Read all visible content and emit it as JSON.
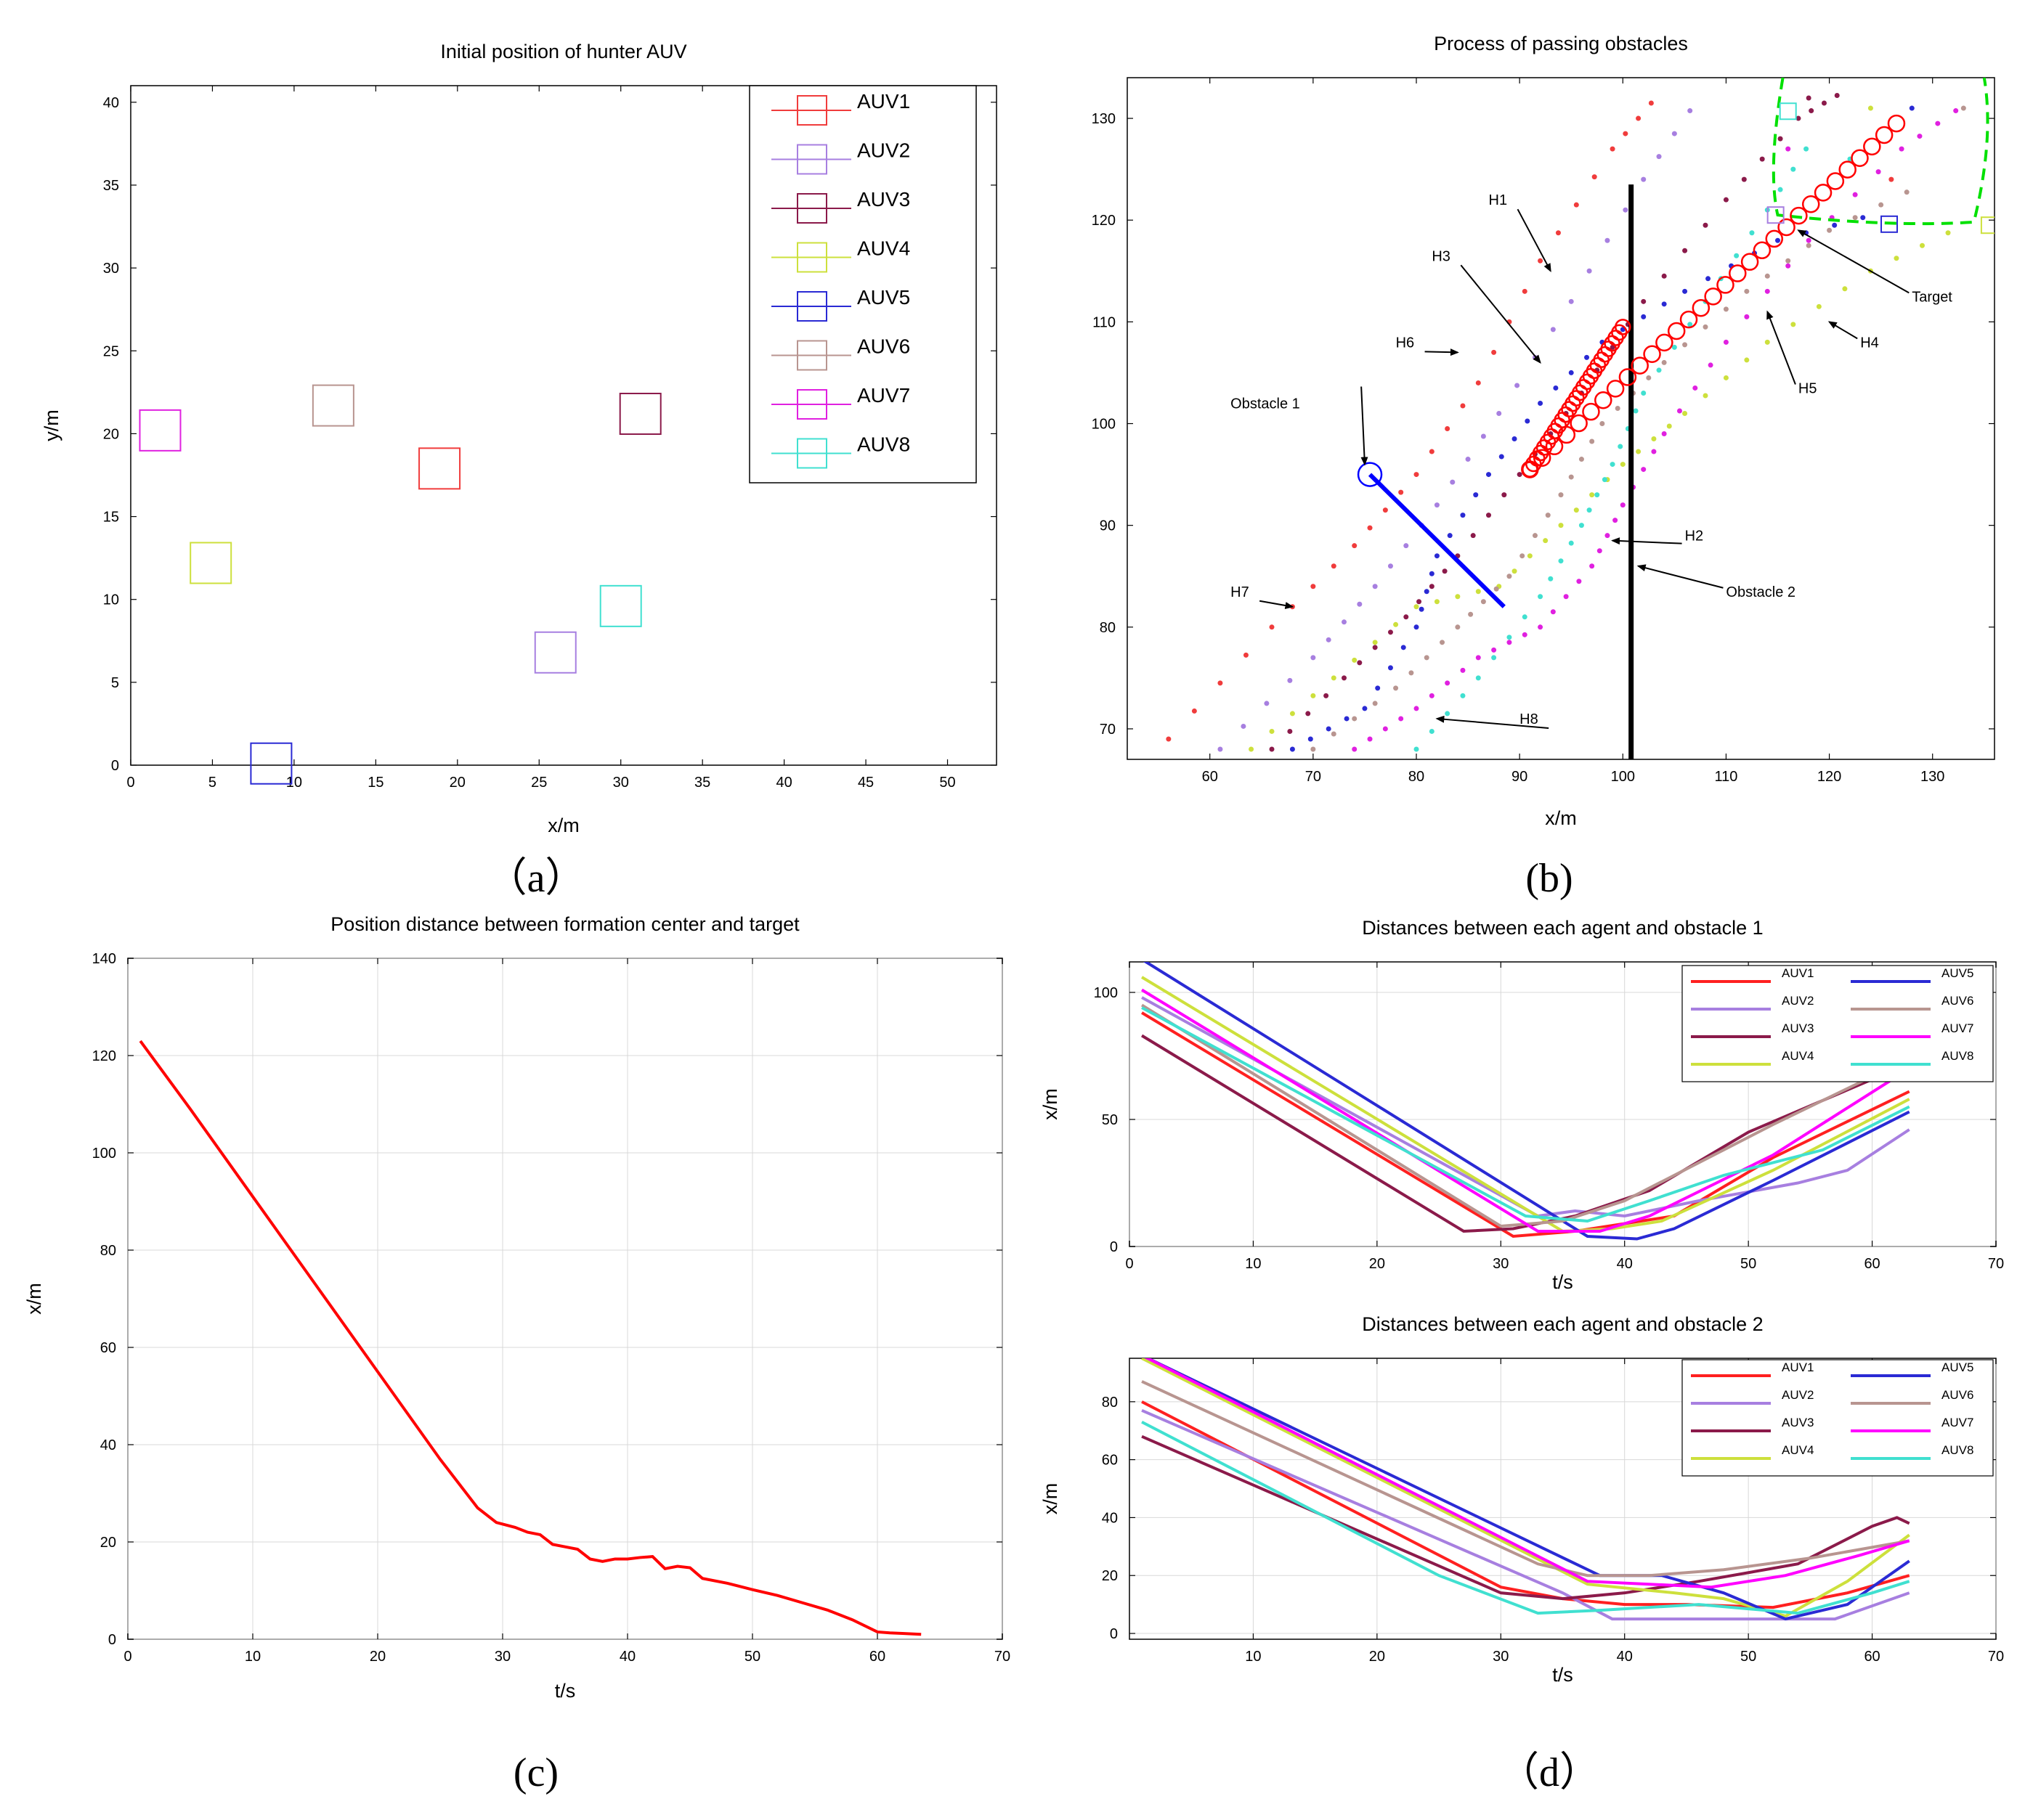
{
  "panels": [
    {
      "id": "a",
      "label": "（a）"
    },
    {
      "id": "b",
      "label": "(b)"
    },
    {
      "id": "c",
      "label": "(c)"
    },
    {
      "id": "d",
      "label": "（d）"
    }
  ],
  "chart_data": [
    {
      "id": "a",
      "type": "scatter",
      "title": "Initial position of hunter AUV",
      "xlabel": "x/m",
      "ylabel": "y/m",
      "xlim": [
        0,
        53
      ],
      "ylim": [
        0,
        41
      ],
      "xticks": [
        0,
        5,
        10,
        15,
        20,
        25,
        30,
        35,
        40,
        45,
        50
      ],
      "yticks": [
        0,
        5,
        10,
        15,
        20,
        25,
        30,
        35,
        40
      ],
      "grid": false,
      "legend_position": "top-right",
      "series": [
        {
          "name": "AUV1",
          "color": "#f03c3c",
          "x": 18.9,
          "y": 17.9
        },
        {
          "name": "AUV2",
          "color": "#a77fe0",
          "x": 26,
          "y": 6.8
        },
        {
          "name": "AUV3",
          "color": "#8b1a4a",
          "x": 31.2,
          "y": 21.2
        },
        {
          "name": "AUV4",
          "color": "#cde03c",
          "x": 4.9,
          "y": 12.2
        },
        {
          "name": "AUV5",
          "color": "#2a2ad4",
          "x": 8.6,
          "y": 0.1
        },
        {
          "name": "AUV6",
          "color": "#b89590",
          "x": 12.4,
          "y": 21.7
        },
        {
          "name": "AUV7",
          "color": "#e020e0",
          "x": 1.8,
          "y": 20.2
        },
        {
          "name": "AUV8",
          "color": "#40e0d0",
          "x": 30,
          "y": 9.6
        }
      ]
    },
    {
      "id": "b",
      "type": "scatter",
      "title": "Process of passing obstacles",
      "xlabel": "x/m",
      "ylabel": "",
      "xlim": [
        52,
        136
      ],
      "ylim": [
        67,
        134
      ],
      "xticks": [
        60,
        70,
        80,
        90,
        100,
        110,
        120,
        130
      ],
      "yticks": [
        70,
        80,
        90,
        100,
        110,
        120,
        130
      ],
      "grid": false,
      "annotations": [
        {
          "text": "H1",
          "x": 87,
          "y": 121.5
        },
        {
          "text": "H3",
          "x": 81.5,
          "y": 116
        },
        {
          "text": "H6",
          "x": 78,
          "y": 107.5
        },
        {
          "text": "Obstacle 1",
          "x": 62,
          "y": 101.5
        },
        {
          "text": "H7",
          "x": 62,
          "y": 83
        },
        {
          "text": "H8",
          "x": 90,
          "y": 70.5
        },
        {
          "text": "H2",
          "x": 106,
          "y": 88.5
        },
        {
          "text": "Obstacle 2",
          "x": 110,
          "y": 83
        },
        {
          "text": "H5",
          "x": 117,
          "y": 103
        },
        {
          "text": "H4",
          "x": 123,
          "y": 107.5
        },
        {
          "text": "Target",
          "x": 128,
          "y": 112
        }
      ],
      "obstacle1": {
        "from": [
          75.5,
          95
        ],
        "to": [
          88.5,
          82
        ]
      },
      "obstacle2": {
        "x": 100.8,
        "from": 67,
        "to": 123.5
      },
      "target_path": {
        "from": [
          91,
          95.5
        ],
        "to": [
          126.5,
          129.5
        ],
        "spur_from": [
          91,
          95.5
        ],
        "spur_to": [
          100,
          109.5
        ]
      },
      "formation_markers": [
        {
          "color": "#a77fe0",
          "x": 114.8,
          "y": 120.5
        },
        {
          "color": "#40e0d0",
          "x": 116,
          "y": 130.7
        },
        {
          "color": "#2a2ad4",
          "x": 125.8,
          "y": 119.6
        },
        {
          "color": "#cde03c",
          "x": 135.5,
          "y": 119.5
        }
      ]
    },
    {
      "id": "c",
      "type": "line",
      "title": "Position distance between formation center and target",
      "xlabel": "t/s",
      "ylabel": "x/m",
      "xlim": [
        0,
        70
      ],
      "ylim": [
        0,
        140
      ],
      "xticks": [
        0,
        10,
        20,
        30,
        40,
        50,
        60,
        70
      ],
      "yticks": [
        0,
        20,
        40,
        60,
        80,
        100,
        120,
        140
      ],
      "grid": true,
      "series": [
        {
          "name": "",
          "color": "#ff0000",
          "x": [
            1,
            5,
            10,
            15,
            20,
            25,
            28,
            29.5,
            31,
            32,
            33,
            34,
            35,
            36,
            37,
            38,
            39,
            40,
            41,
            42,
            43,
            44,
            45,
            46,
            48,
            50,
            52,
            54,
            56,
            58,
            60,
            61,
            62,
            63.5
          ],
          "y": [
            123,
            109,
            91,
            73,
            55,
            37,
            27,
            24,
            23,
            22,
            21.5,
            19.5,
            19,
            18.5,
            16.5,
            16,
            16.5,
            16.5,
            16.8,
            17,
            14.5,
            15,
            14.7,
            12.5,
            11.5,
            10.2,
            9,
            7.5,
            6,
            4,
            1.5,
            1.3,
            1.2,
            1
          ]
        }
      ]
    },
    {
      "id": "d1",
      "type": "line",
      "title": "Distances between each agent and obstacle 1",
      "xlabel": "t/s",
      "ylabel": "x/m",
      "xlim": [
        0,
        70
      ],
      "ylim": [
        0,
        112
      ],
      "xticks": [
        0,
        10,
        20,
        30,
        40,
        50,
        60,
        70
      ],
      "yticks": [
        0,
        50,
        100
      ],
      "grid": true,
      "legend_position": "top-right",
      "series": [
        {
          "name": "AUV1",
          "color": "#ff2020",
          "x": [
            1,
            31,
            36,
            40,
            44,
            52,
            63
          ],
          "y": [
            92,
            4,
            6,
            9,
            12,
            35,
            61
          ]
        },
        {
          "name": "AUV2",
          "color": "#a77fe0",
          "x": [
            1,
            33,
            36,
            40,
            46,
            54,
            58,
            63
          ],
          "y": [
            98,
            12,
            14,
            12,
            18,
            25,
            30,
            46
          ]
        },
        {
          "name": "AUV3",
          "color": "#8b1a4a",
          "x": [
            1,
            27,
            31,
            36,
            42,
            50,
            63
          ],
          "y": [
            83,
            6,
            7,
            12,
            22,
            45,
            72
          ]
        },
        {
          "name": "AUV4",
          "color": "#cde03c",
          "x": [
            1,
            35,
            39,
            43,
            52,
            63
          ],
          "y": [
            106,
            6,
            7,
            10,
            30,
            58
          ]
        },
        {
          "name": "AUV5",
          "color": "#2a2ad4",
          "x": [
            1,
            37,
            41,
            44,
            52,
            63
          ],
          "y": [
            113,
            4,
            3,
            7,
            26,
            53
          ]
        },
        {
          "name": "AUV6",
          "color": "#b89590",
          "x": [
            1,
            30,
            35,
            40,
            52,
            63
          ],
          "y": [
            95,
            8,
            10,
            18,
            48,
            74
          ]
        },
        {
          "name": "AUV7",
          "color": "#ff00ff",
          "x": [
            1,
            33,
            38,
            42,
            52,
            63
          ],
          "y": [
            101,
            6,
            6,
            12,
            36,
            70
          ]
        },
        {
          "name": "AUV8",
          "color": "#40e0d0",
          "x": [
            1,
            32,
            37,
            42,
            48,
            56,
            63
          ],
          "y": [
            94,
            12,
            10,
            18,
            28,
            38,
            55
          ]
        }
      ]
    },
    {
      "id": "d2",
      "type": "line",
      "title": "Distances between each agent and obstacle 2",
      "xlabel": "t/s",
      "ylabel": "x/m",
      "xlim": [
        0,
        70
      ],
      "ylim": [
        -2,
        95
      ],
      "xticks": [
        10,
        20,
        30,
        40,
        50,
        60,
        70
      ],
      "yticks": [
        0,
        20,
        40,
        60,
        80
      ],
      "grid": true,
      "legend_position": "top-right",
      "series": [
        {
          "name": "AUV1",
          "color": "#ff2020",
          "x": [
            1,
            30,
            35,
            40,
            45,
            52,
            58,
            63
          ],
          "y": [
            80,
            16,
            12,
            10,
            10,
            9,
            14,
            20
          ]
        },
        {
          "name": "AUV2",
          "color": "#a77fe0",
          "x": [
            1,
            35,
            39,
            44,
            50,
            57,
            63
          ],
          "y": [
            77,
            14,
            5,
            5,
            5,
            5,
            14
          ]
        },
        {
          "name": "AUV3",
          "color": "#8b1a4a",
          "x": [
            1,
            30,
            35,
            40,
            46,
            54,
            60,
            62,
            63
          ],
          "y": [
            68,
            14,
            12,
            14,
            18,
            24,
            37,
            40,
            38
          ]
        },
        {
          "name": "AUV4",
          "color": "#cde03c",
          "x": [
            1,
            37,
            44,
            48,
            53,
            58,
            63
          ],
          "y": [
            95,
            17,
            14,
            12,
            6,
            18,
            34
          ]
        },
        {
          "name": "AUV5",
          "color": "#2a2ad4",
          "x": [
            1,
            38,
            43,
            48,
            53,
            58,
            63
          ],
          "y": [
            96,
            20,
            20,
            14,
            5,
            10,
            25
          ]
        },
        {
          "name": "AUV6",
          "color": "#b89590",
          "x": [
            1,
            33,
            37,
            42,
            48,
            55,
            63
          ],
          "y": [
            87,
            24,
            20,
            20,
            22,
            26,
            32
          ]
        },
        {
          "name": "AUV7",
          "color": "#ff00ff",
          "x": [
            1,
            37,
            42,
            47,
            53,
            59,
            63
          ],
          "y": [
            96,
            18,
            17,
            16,
            20,
            27,
            32
          ]
        },
        {
          "name": "AUV8",
          "color": "#40e0d0",
          "x": [
            1,
            25,
            33,
            38,
            46,
            54,
            60,
            63
          ],
          "y": [
            73,
            20,
            7,
            8,
            10,
            7,
            14,
            18
          ]
        }
      ]
    }
  ]
}
